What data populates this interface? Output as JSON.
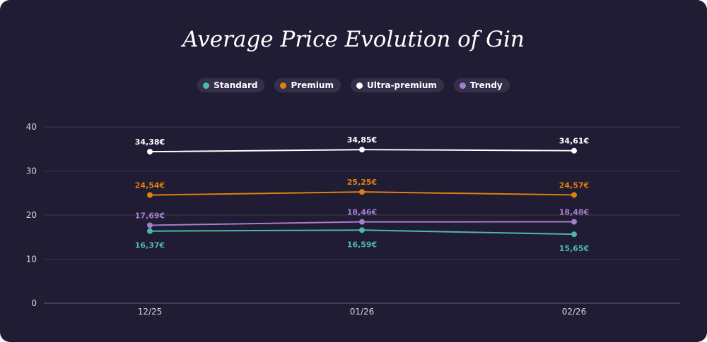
{
  "chart_data": {
    "type": "line",
    "title": "Average Price Evolution of Gin",
    "categories": [
      "12/25",
      "01/26",
      "02/26"
    ],
    "ylim": [
      0,
      40
    ],
    "yticks": [
      0,
      10,
      20,
      30,
      40
    ],
    "grid": true,
    "legend_position": "top",
    "series": [
      {
        "name": "Standard",
        "color": "#4db8ad",
        "values": [
          16.37,
          16.59,
          15.65
        ],
        "labels": [
          "16,37€",
          "16,59€",
          "15,65€"
        ],
        "label_pos": "below"
      },
      {
        "name": "Premium",
        "color": "#e0800f",
        "values": [
          24.54,
          25.25,
          24.57
        ],
        "labels": [
          "24,54€",
          "25,25€",
          "24,57€"
        ],
        "label_pos": "above"
      },
      {
        "name": "Ultra-premium",
        "color": "#ffffff",
        "values": [
          34.38,
          34.85,
          34.61
        ],
        "labels": [
          "34,38€",
          "34,85€",
          "34,61€"
        ],
        "label_pos": "above"
      },
      {
        "name": "Trendy",
        "color": "#a57fcb",
        "values": [
          17.69,
          18.46,
          18.48
        ],
        "labels": [
          "17,69€",
          "18,46€",
          "18,48€"
        ],
        "label_pos": "above"
      }
    ]
  }
}
